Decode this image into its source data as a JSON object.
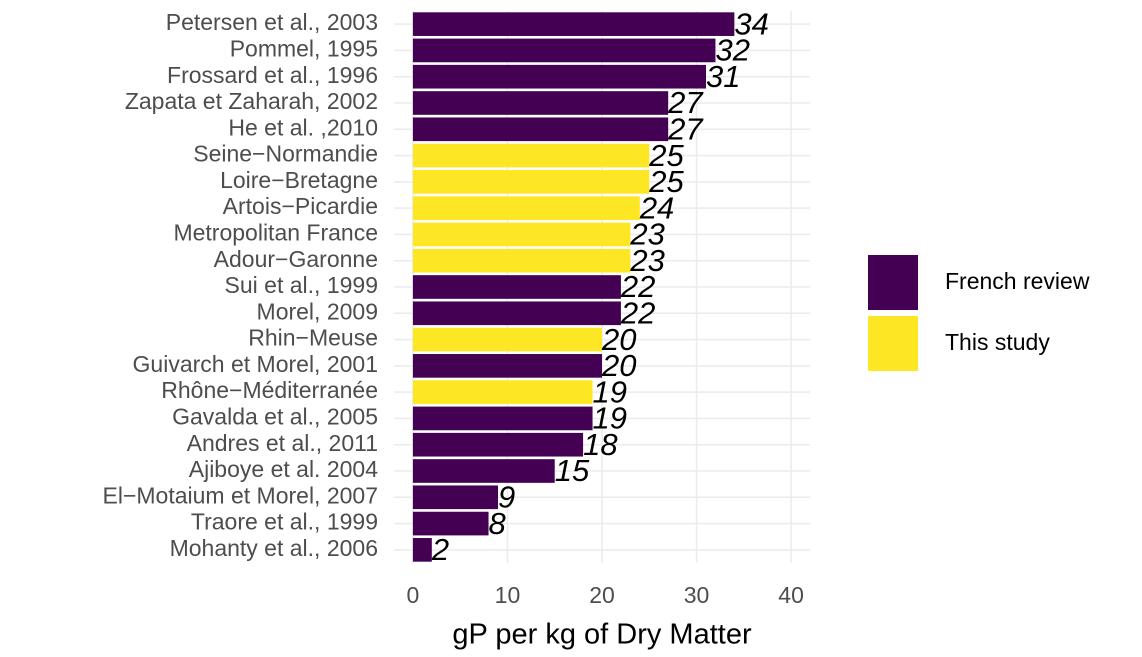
{
  "chart_data": {
    "type": "bar",
    "orientation": "horizontal",
    "x_label": "gP per kg of Dry Matter",
    "categories": [
      "Petersen et al., 2003",
      "Pommel, 1995",
      "Frossard et al., 1996",
      "Zapata et Zaharah, 2002",
      "He et al. ,2010",
      "Seine−Normandie",
      "Loire−Bretagne",
      "Artois−Picardie",
      "Metropolitan France",
      "Adour−Garonne",
      "Sui et al., 1999",
      "Morel, 2009",
      "Rhin−Meuse",
      "Guivarch et Morel, 2001",
      "Rhône−Méditerranée",
      "Gavalda et al., 2005",
      "Andres et al., 2011",
      "Ajiboye et al. 2004",
      "El−Motaium et Morel, 2007",
      "Traore et al., 1999",
      "Mohanty et al., 2006"
    ],
    "series": [
      {
        "name": "French review",
        "color": "#440154",
        "values": [
          34,
          32,
          31,
          27,
          27,
          null,
          null,
          null,
          null,
          null,
          22,
          22,
          null,
          20,
          null,
          19,
          18,
          15,
          9,
          8,
          2
        ]
      },
      {
        "name": "This study",
        "color": "#FDE725",
        "values": [
          null,
          null,
          null,
          null,
          null,
          25,
          25,
          24,
          23,
          23,
          null,
          null,
          20,
          null,
          19,
          null,
          null,
          null,
          null,
          null,
          null
        ]
      }
    ],
    "xlim": [
      -2,
      42
    ],
    "xticks": [
      0,
      10,
      20,
      30,
      40
    ],
    "grid": true,
    "legend": "right"
  }
}
